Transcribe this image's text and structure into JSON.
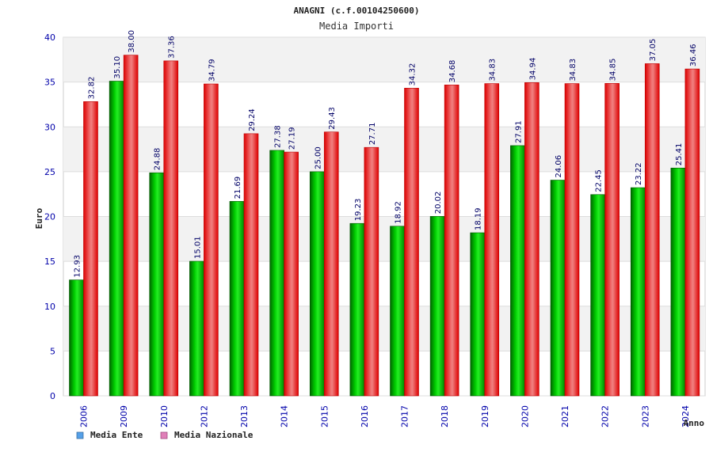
{
  "chart_data": {
    "type": "bar",
    "title": "ANAGNI (c.f.00104250600)",
    "subtitle": "Media Importi",
    "xlabel": "Anno",
    "ylabel": "Euro",
    "ylim": [
      0,
      40
    ],
    "yticks": [
      "0",
      "5",
      "10",
      "15",
      "20",
      "25",
      "30",
      "35",
      "40"
    ],
    "categories": [
      "2006",
      "2009",
      "2010",
      "2012",
      "2013",
      "2014",
      "2015",
      "2016",
      "2017",
      "2018",
      "2019",
      "2020",
      "2021",
      "2022",
      "2023",
      "2024"
    ],
    "series": [
      {
        "name": "Media Ente",
        "color": "#00aa00",
        "legend_color": "#55a0e8",
        "values": [
          12.93,
          35.1,
          24.88,
          15.01,
          21.69,
          27.38,
          25.0,
          19.23,
          18.92,
          20.02,
          18.19,
          27.91,
          24.06,
          22.45,
          23.22,
          25.41
        ],
        "labels": [
          "12.93",
          "35.10",
          "24.88",
          "15.01",
          "21.69",
          "27.38",
          "25.00",
          "19.23",
          "18.92",
          "20.02",
          "18.19",
          "27.91",
          "24.06",
          "22.45",
          "23.22",
          "25.41"
        ]
      },
      {
        "name": "Media Nazionale",
        "color": "#ee0000",
        "legend_color": "#e07fb8",
        "values": [
          32.82,
          38.0,
          37.36,
          34.79,
          29.24,
          27.19,
          29.43,
          27.71,
          34.32,
          34.68,
          34.83,
          34.94,
          34.83,
          34.85,
          37.05,
          36.46
        ],
        "labels": [
          "32.82",
          "38.00",
          "37.36",
          "34.79",
          "29.24",
          "27.19",
          "29.43",
          "27.71",
          "34.32",
          "34.68",
          "34.83",
          "34.94",
          "34.83",
          "34.85",
          "37.05",
          "36.46"
        ]
      }
    ],
    "legend_position": "bottom-left",
    "grid": true
  }
}
